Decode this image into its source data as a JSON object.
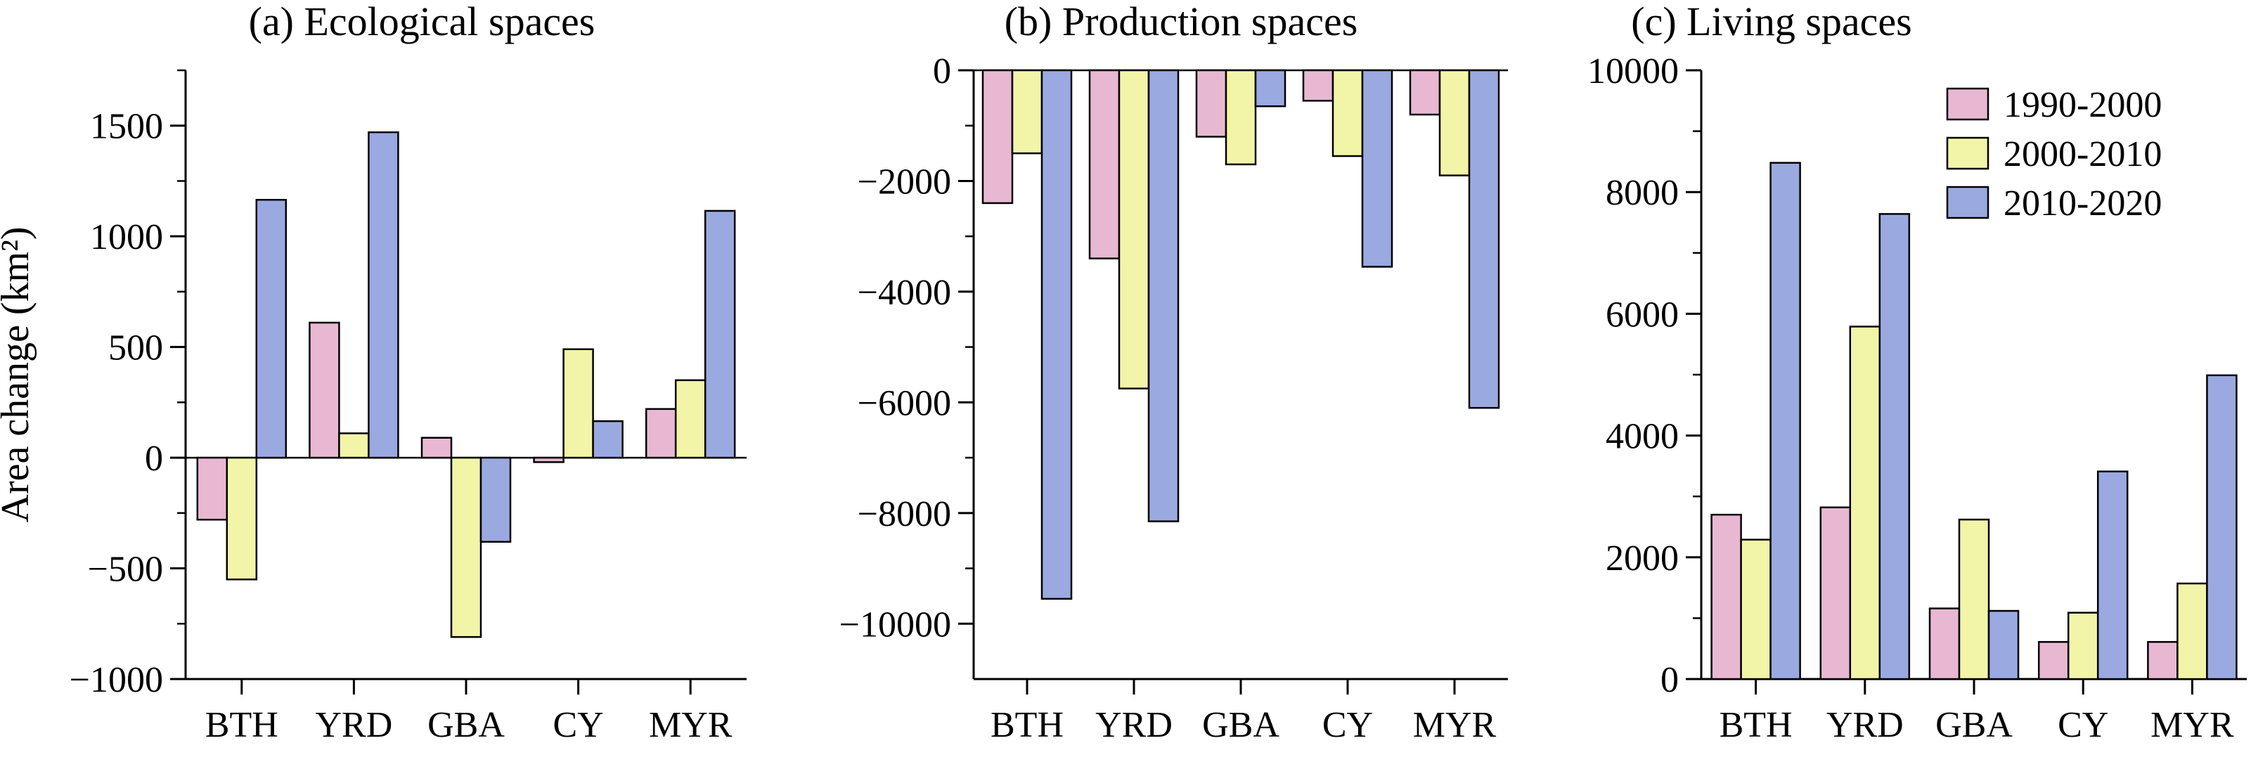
{
  "colors": {
    "1990-2000": "#e8b8d2",
    "2000-2010": "#f2f5a8",
    "2010-2020": "#9aaae0",
    "axis": "#000000"
  },
  "legend_placement": "top-right of panel (c)",
  "chart_data": [
    {
      "type": "bar",
      "title": "(a) Ecological spaces",
      "xlabel": "",
      "ylabel": "Area change (km²)",
      "categories": [
        "BTH",
        "YRD",
        "GBA",
        "CY",
        "MYR"
      ],
      "ylim": [
        -1000,
        1750
      ],
      "yticks": [
        -1000,
        -500,
        0,
        500,
        1000,
        1500
      ],
      "ytick_labels": [
        "−1000",
        "−500",
        "0",
        "500",
        "1000",
        "1500"
      ],
      "grid": false,
      "series": [
        {
          "name": "1990-2000",
          "values": [
            -280,
            610,
            90,
            -20,
            220
          ]
        },
        {
          "name": "2000-2010",
          "values": [
            -550,
            110,
            -810,
            490,
            350
          ]
        },
        {
          "name": "2010-2020",
          "values": [
            1165,
            1470,
            -380,
            165,
            1115
          ]
        }
      ]
    },
    {
      "type": "bar",
      "title": "(b) Production spaces",
      "xlabel": "",
      "ylabel": "",
      "categories": [
        "BTH",
        "YRD",
        "GBA",
        "CY",
        "MYR"
      ],
      "ylim": [
        -11000,
        0
      ],
      "yticks": [
        -10000,
        -8000,
        -6000,
        -4000,
        -2000,
        0
      ],
      "ytick_labels": [
        "−10000",
        "−8000",
        "−6000",
        "−4000",
        "−2000",
        "0"
      ],
      "grid": false,
      "series": [
        {
          "name": "1990-2000",
          "values": [
            -2400,
            -3400,
            -1200,
            -550,
            -800
          ]
        },
        {
          "name": "2000-2010",
          "values": [
            -1500,
            -5750,
            -1700,
            -1550,
            -1900
          ]
        },
        {
          "name": "2010-2020",
          "values": [
            -9550,
            -8150,
            -650,
            -3550,
            -6100
          ]
        }
      ]
    },
    {
      "type": "bar",
      "title": "(c) Living spaces",
      "xlabel": "",
      "ylabel": "",
      "categories": [
        "BTH",
        "YRD",
        "GBA",
        "CY",
        "MYR"
      ],
      "ylim": [
        0,
        10000
      ],
      "yticks": [
        0,
        2000,
        4000,
        6000,
        8000,
        10000
      ],
      "ytick_labels": [
        "0",
        "2000",
        "4000",
        "6000",
        "8000",
        "10000"
      ],
      "grid": false,
      "legend": [
        "1990-2000",
        "2000-2010",
        "2010-2020"
      ],
      "series": [
        {
          "name": "1990-2000",
          "values": [
            2700,
            2820,
            1160,
            610,
            610
          ]
        },
        {
          "name": "2000-2010",
          "values": [
            2290,
            5790,
            2620,
            1090,
            1570
          ]
        },
        {
          "name": "2010-2020",
          "values": [
            8480,
            7640,
            1120,
            3410,
            4990
          ]
        }
      ]
    }
  ]
}
